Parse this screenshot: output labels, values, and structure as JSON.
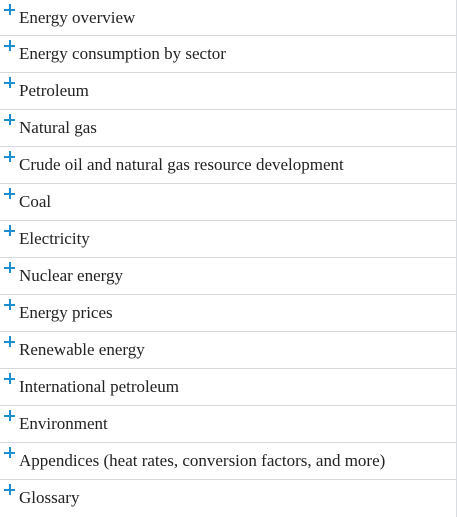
{
  "sections": [
    {
      "label": "Energy overview",
      "icon": "plus-icon"
    },
    {
      "label": "Energy consumption by sector",
      "icon": "plus-icon"
    },
    {
      "label": "Petroleum",
      "icon": "plus-icon"
    },
    {
      "label": "Natural gas",
      "icon": "plus-icon"
    },
    {
      "label": "Crude oil and natural gas resource development",
      "icon": "plus-icon"
    },
    {
      "label": "Coal",
      "icon": "plus-icon"
    },
    {
      "label": "Electricity",
      "icon": "plus-icon"
    },
    {
      "label": "Nuclear energy",
      "icon": "plus-icon"
    },
    {
      "label": "Energy prices",
      "icon": "plus-icon"
    },
    {
      "label": "Renewable energy",
      "icon": "plus-icon"
    },
    {
      "label": "International petroleum",
      "icon": "plus-icon"
    },
    {
      "label": "Environment",
      "icon": "plus-icon"
    },
    {
      "label": "Appendices (heat rates, conversion factors, and more)",
      "icon": "plus-icon"
    },
    {
      "label": "Glossary",
      "icon": "plus-icon"
    }
  ],
  "colors": {
    "accent": "#1d8fd0",
    "divider": "#d4d9de",
    "text": "#222222"
  }
}
